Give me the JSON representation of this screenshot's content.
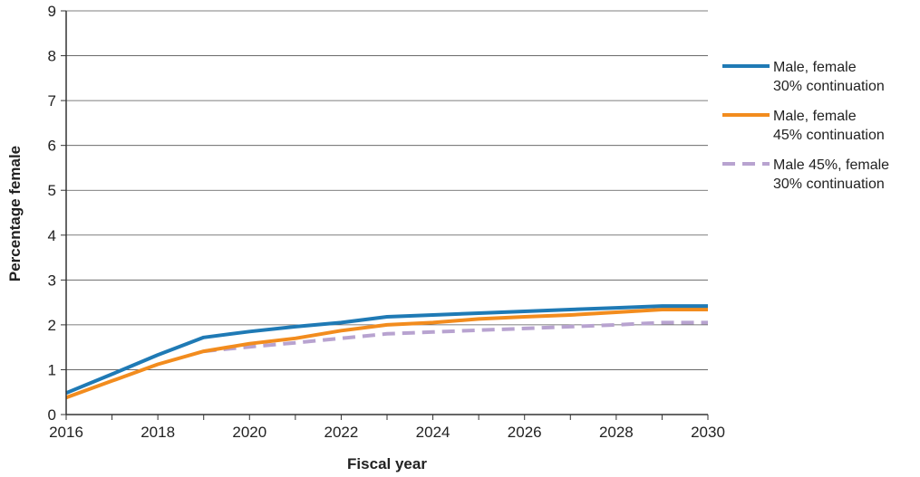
{
  "chart_data": {
    "type": "line",
    "title": "",
    "xlabel": "Fiscal year",
    "ylabel": "Percentage female",
    "xlim": [
      2016,
      2030
    ],
    "ylim": [
      0,
      9
    ],
    "x_ticks": [
      2016,
      2018,
      2020,
      2022,
      2024,
      2026,
      2028,
      2030
    ],
    "y_ticks": [
      0,
      1,
      2,
      3,
      4,
      5,
      6,
      7,
      8,
      9
    ],
    "grid": "horizontal",
    "legend_position": "right",
    "x": [
      2016,
      2017,
      2018,
      2019,
      2020,
      2021,
      2022,
      2023,
      2024,
      2025,
      2026,
      2027,
      2028,
      2029,
      2030
    ],
    "series": [
      {
        "name_lines": [
          "Male, female",
          "30% continuation"
        ],
        "color": "#1f7ab5",
        "style": "solid",
        "values": [
          0.48,
          0.9,
          1.33,
          1.72,
          1.85,
          1.96,
          2.05,
          2.18,
          2.22,
          2.26,
          2.3,
          2.34,
          2.38,
          2.42,
          2.42
        ]
      },
      {
        "name_lines": [
          "Male, female",
          "45% continuation"
        ],
        "color": "#f28c1e",
        "style": "solid",
        "values": [
          0.38,
          0.75,
          1.12,
          1.41,
          1.58,
          1.7,
          1.87,
          2.0,
          2.05,
          2.13,
          2.18,
          2.22,
          2.28,
          2.34,
          2.34
        ]
      },
      {
        "name_lines": [
          "Male 45%, female",
          "30% continuation"
        ],
        "color": "#b8a3d0",
        "style": "dashed",
        "values": [
          null,
          null,
          null,
          1.41,
          1.51,
          1.6,
          1.7,
          1.8,
          1.84,
          1.88,
          1.92,
          1.96,
          2.0,
          2.05,
          2.05
        ]
      }
    ]
  }
}
